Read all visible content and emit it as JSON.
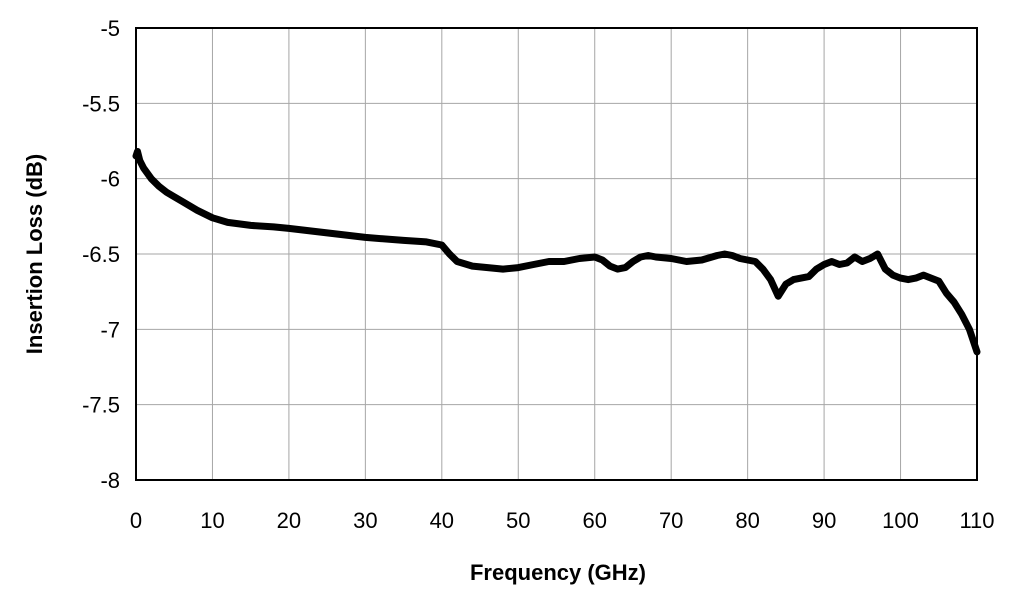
{
  "chart_data": {
    "type": "line",
    "title": "",
    "xlabel": "Frequency (GHz)",
    "ylabel": "Insertion Loss (dB)",
    "xlim": [
      0,
      110
    ],
    "ylim": [
      -8,
      -5
    ],
    "x_ticks": [
      "0",
      "10",
      "20",
      "30",
      "40",
      "50",
      "60",
      "70",
      "80",
      "90",
      "100",
      "110"
    ],
    "y_ticks": [
      "-5",
      "-5.5",
      "-6",
      "-6.5",
      "-7",
      "-7.5",
      "-8"
    ],
    "grid": true,
    "legend": "none",
    "series_color": "#000000",
    "series": [
      {
        "x": [
          0,
          0.2,
          0.5,
          1,
          2,
          3,
          4,
          5,
          6,
          8,
          10,
          12,
          15,
          18,
          20,
          25,
          30,
          35,
          38,
          40,
          41,
          42,
          44,
          46,
          48,
          50,
          52,
          54,
          56,
          58,
          60,
          61,
          62,
          63,
          64,
          65,
          66,
          67,
          68,
          70,
          72,
          74,
          76,
          77,
          78,
          79,
          80,
          81,
          82,
          83,
          84,
          85,
          86,
          88,
          89,
          90,
          91,
          92,
          93,
          94,
          95,
          96,
          97,
          98,
          99,
          100,
          101,
          102,
          103,
          104,
          105,
          106,
          107,
          108,
          109,
          110
        ],
        "y": [
          -5.85,
          -5.82,
          -5.88,
          -5.93,
          -6.0,
          -6.05,
          -6.09,
          -6.12,
          -6.15,
          -6.21,
          -6.26,
          -6.29,
          -6.31,
          -6.32,
          -6.33,
          -6.36,
          -6.39,
          -6.41,
          -6.42,
          -6.44,
          -6.5,
          -6.55,
          -6.58,
          -6.59,
          -6.6,
          -6.59,
          -6.57,
          -6.55,
          -6.55,
          -6.53,
          -6.52,
          -6.54,
          -6.58,
          -6.6,
          -6.59,
          -6.55,
          -6.52,
          -6.51,
          -6.52,
          -6.53,
          -6.55,
          -6.54,
          -6.51,
          -6.5,
          -6.51,
          -6.53,
          -6.54,
          -6.55,
          -6.6,
          -6.67,
          -6.78,
          -6.7,
          -6.67,
          -6.65,
          -6.6,
          -6.57,
          -6.55,
          -6.57,
          -6.56,
          -6.52,
          -6.55,
          -6.53,
          -6.5,
          -6.6,
          -6.64,
          -6.66,
          -6.67,
          -6.66,
          -6.64,
          -6.66,
          -6.68,
          -6.76,
          -6.82,
          -6.9,
          -7.0,
          -7.15
        ]
      }
    ]
  }
}
